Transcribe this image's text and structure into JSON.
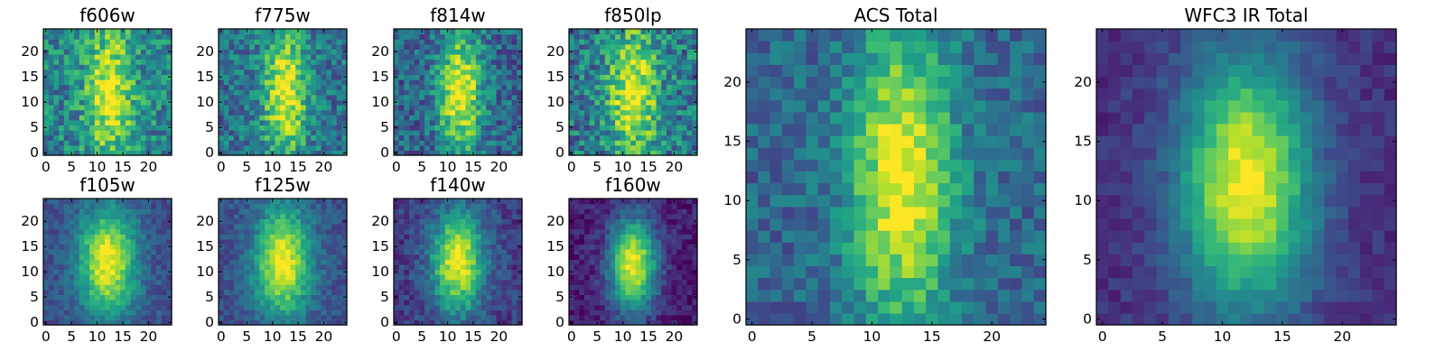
{
  "chart_data": [
    {
      "type": "heatmap",
      "title": "f606w",
      "grid": 25,
      "xticks": [
        "0",
        "5",
        "10",
        "15",
        "20"
      ],
      "yticks": [
        "0",
        "5",
        "10",
        "15",
        "20"
      ],
      "xlim": [
        0,
        24
      ],
      "ylim": [
        0,
        24
      ],
      "colormap": "viridis",
      "seed": 11,
      "source": {
        "center_x": 12.5,
        "center_y": 12,
        "sigma_x": 3.2,
        "sigma_y": 9,
        "floor": 0.45,
        "noise": 0.22
      }
    },
    {
      "type": "heatmap",
      "title": "f775w",
      "grid": 25,
      "xticks": [
        "0",
        "5",
        "10",
        "15",
        "20"
      ],
      "yticks": [
        "0",
        "5",
        "10",
        "15",
        "20"
      ],
      "xlim": [
        0,
        24
      ],
      "ylim": [
        0,
        24
      ],
      "colormap": "viridis",
      "seed": 23,
      "source": {
        "center_x": 12.5,
        "center_y": 12,
        "sigma_x": 3,
        "sigma_y": 9,
        "floor": 0.38,
        "noise": 0.2
      }
    },
    {
      "type": "heatmap",
      "title": "f814w",
      "grid": 25,
      "xticks": [
        "0",
        "5",
        "10",
        "15",
        "20"
      ],
      "yticks": [
        "0",
        "5",
        "10",
        "15",
        "20"
      ],
      "xlim": [
        0,
        24
      ],
      "ylim": [
        0,
        24
      ],
      "colormap": "viridis",
      "seed": 37,
      "source": {
        "center_x": 12.5,
        "center_y": 12,
        "sigma_x": 3,
        "sigma_y": 8.5,
        "floor": 0.32,
        "noise": 0.2
      }
    },
    {
      "type": "heatmap",
      "title": "f850lp",
      "grid": 25,
      "xticks": [
        "0",
        "5",
        "10",
        "15",
        "20"
      ],
      "yticks": [
        "0",
        "5",
        "10",
        "15",
        "20"
      ],
      "xlim": [
        0,
        24
      ],
      "ylim": [
        0,
        24
      ],
      "colormap": "viridis",
      "seed": 41,
      "source": {
        "center_x": 12,
        "center_y": 12,
        "sigma_x": 3.4,
        "sigma_y": 9,
        "floor": 0.4,
        "noise": 0.24
      }
    },
    {
      "type": "heatmap",
      "title": "f105w",
      "grid": 25,
      "xticks": [
        "0",
        "5",
        "10",
        "15",
        "20"
      ],
      "yticks": [
        "0",
        "5",
        "10",
        "15",
        "20"
      ],
      "xlim": [
        0,
        24
      ],
      "ylim": [
        0,
        24
      ],
      "colormap": "viridis",
      "seed": 53,
      "source": {
        "center_x": 12,
        "center_y": 12,
        "sigma_x": 3.8,
        "sigma_y": 7.5,
        "floor": 0.25,
        "noise": 0.1
      }
    },
    {
      "type": "heatmap",
      "title": "f125w",
      "grid": 25,
      "xticks": [
        "0",
        "5",
        "10",
        "15",
        "20"
      ],
      "yticks": [
        "0",
        "5",
        "10",
        "15",
        "20"
      ],
      "xlim": [
        0,
        24
      ],
      "ylim": [
        0,
        24
      ],
      "colormap": "viridis",
      "seed": 67,
      "source": {
        "center_x": 12,
        "center_y": 12,
        "sigma_x": 3.8,
        "sigma_y": 7.5,
        "floor": 0.25,
        "noise": 0.1
      }
    },
    {
      "type": "heatmap",
      "title": "f140w",
      "grid": 25,
      "xticks": [
        "0",
        "5",
        "10",
        "15",
        "20"
      ],
      "yticks": [
        "0",
        "5",
        "10",
        "15",
        "20"
      ],
      "xlim": [
        0,
        24
      ],
      "ylim": [
        0,
        24
      ],
      "colormap": "viridis",
      "seed": 79,
      "source": {
        "center_x": 12,
        "center_y": 12,
        "sigma_x": 3.6,
        "sigma_y": 7,
        "floor": 0.18,
        "noise": 0.12
      }
    },
    {
      "type": "heatmap",
      "title": "f160w",
      "grid": 25,
      "xticks": [
        "0",
        "5",
        "10",
        "15",
        "20"
      ],
      "yticks": [
        "0",
        "5",
        "10",
        "15",
        "20"
      ],
      "xlim": [
        0,
        24
      ],
      "ylim": [
        0,
        24
      ],
      "colormap": "viridis",
      "seed": 83,
      "source": {
        "center_x": 12,
        "center_y": 11.5,
        "sigma_x": 3.2,
        "sigma_y": 6.5,
        "floor": 0.08,
        "noise": 0.1
      }
    },
    {
      "type": "heatmap",
      "title": "ACS Total",
      "grid": 25,
      "xticks": [
        "0",
        "5",
        "10",
        "15",
        "20"
      ],
      "yticks": [
        "0",
        "5",
        "10",
        "15",
        "20"
      ],
      "xlim": [
        0,
        24
      ],
      "ylim": [
        0,
        24
      ],
      "colormap": "viridis",
      "seed": 97,
      "source": {
        "center_x": 12.5,
        "center_y": 12,
        "sigma_x": 3,
        "sigma_y": 9,
        "floor": 0.33,
        "noise": 0.14
      }
    },
    {
      "type": "heatmap",
      "title": "WFC3 IR Total",
      "grid": 25,
      "xticks": [
        "0",
        "5",
        "10",
        "15",
        "20"
      ],
      "yticks": [
        "0",
        "5",
        "10",
        "15",
        "20"
      ],
      "xlim": [
        0,
        24
      ],
      "ylim": [
        0,
        24
      ],
      "colormap": "viridis",
      "seed": 101,
      "source": {
        "center_x": 12,
        "center_y": 11.5,
        "sigma_x": 3.8,
        "sigma_y": 7.5,
        "floor": 0.14,
        "noise": 0.07
      }
    }
  ]
}
